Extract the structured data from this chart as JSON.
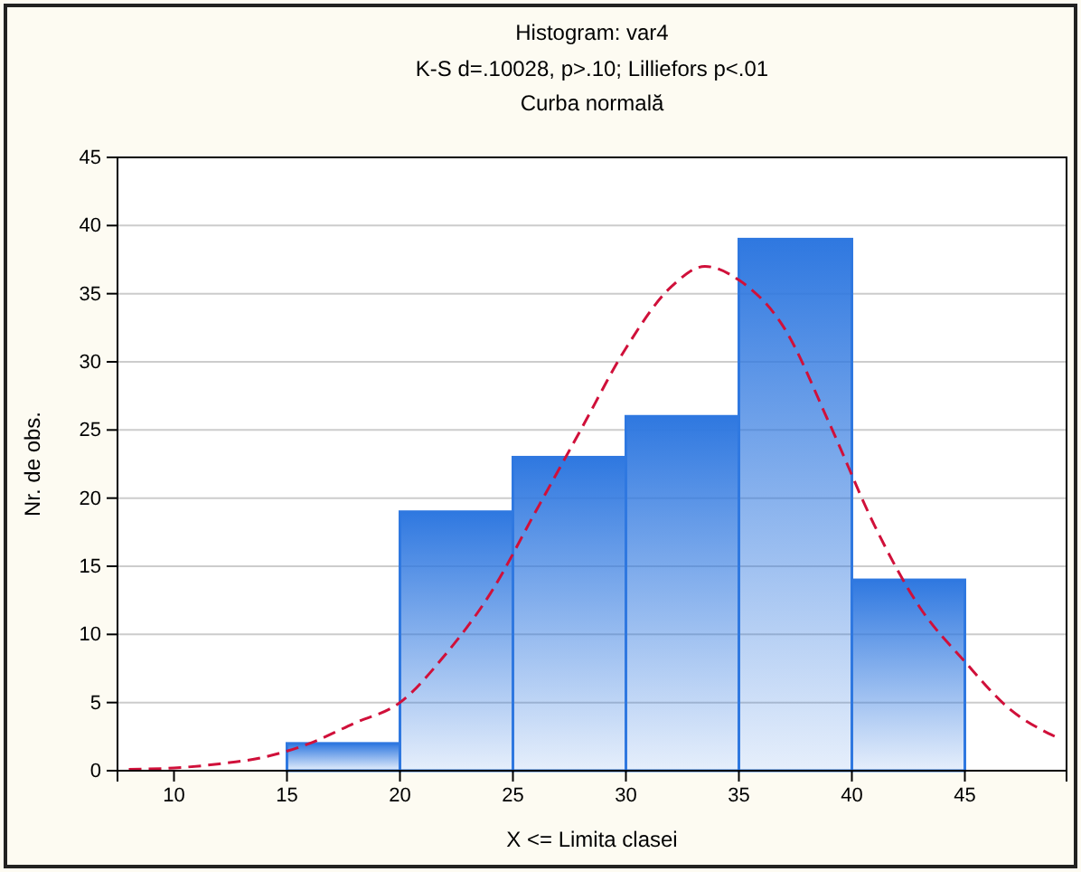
{
  "chart_data": {
    "type": "histogram",
    "title": "Histogram: var4",
    "subtitle": "K-S d=.10028, p>.10; Lilliefors p<.01\nCurba normală",
    "xlabel": "X <= Limita clasei",
    "ylabel": "Nr. de obs.",
    "bins": [
      15,
      20,
      25,
      30,
      35,
      40,
      45
    ],
    "values": [
      2,
      19,
      23,
      26,
      39,
      14
    ],
    "color": "#2f78e0",
    "series": [
      {
        "type": "line",
        "color": "#d0103a",
        "line_style": "dashed",
        "marker": "none",
        "x": [
          8,
          10,
          12,
          14,
          16,
          18,
          20,
          22,
          24,
          26,
          28,
          30,
          32,
          33.5,
          35,
          37,
          39,
          41,
          43,
          45,
          47,
          49
        ],
        "values": [
          0.1,
          0.2,
          0.5,
          1,
          2,
          3.5,
          5,
          8.5,
          13,
          19,
          25,
          31,
          35.5,
          37,
          36,
          32.5,
          25.5,
          18,
          12,
          8,
          4.5,
          2.5
        ]
      }
    ],
    "xlim": [
      7.5,
      49.5
    ],
    "xticks": [
      10,
      15,
      20,
      25,
      30,
      35,
      40,
      45
    ],
    "ylim": [
      0,
      45
    ],
    "yticks": [
      0,
      5,
      10,
      15,
      20,
      25,
      30,
      35,
      40,
      45
    ],
    "grid": "y"
  }
}
